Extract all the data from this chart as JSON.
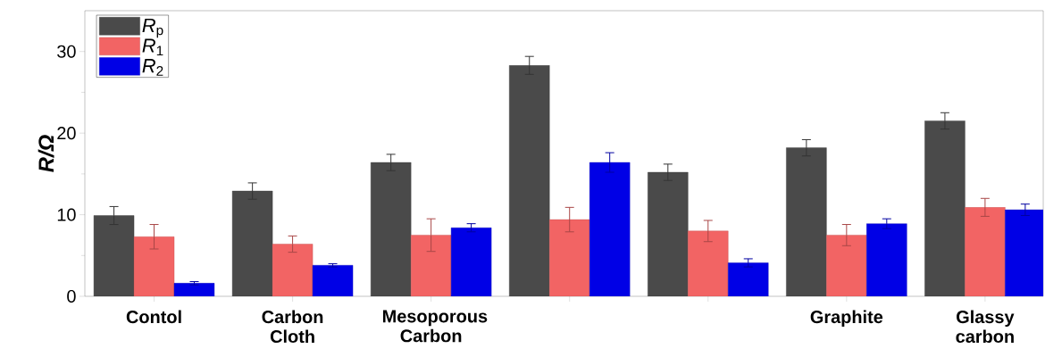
{
  "chart_data": {
    "type": "bar",
    "ylabel": "R/Ω",
    "categories": [
      "Contol",
      "Carbon Cloth",
      "Mesoporous Carbon",
      null,
      null,
      "Graphite",
      "Glassy carbon"
    ],
    "series": [
      {
        "name": "*R*$_{p}$",
        "color": "#4a4a4a",
        "values": [
          9.9,
          12.9,
          16.4,
          28.3,
          15.2,
          18.2,
          21.5
        ],
        "errors": [
          1.1,
          1.0,
          1.0,
          1.1,
          1.0,
          1.0,
          1.0
        ]
      },
      {
        "name": "*R*$_{1}$",
        "color": "#f26464",
        "values": [
          7.3,
          6.4,
          7.5,
          9.4,
          8.0,
          7.5,
          10.9
        ],
        "errors": [
          1.5,
          1.0,
          2.0,
          1.5,
          1.3,
          1.3,
          1.1
        ]
      },
      {
        "name": "*R*$_{2}$",
        "color": "#0000e6",
        "values": [
          1.6,
          3.8,
          8.4,
          16.4,
          4.1,
          8.9,
          10.6
        ],
        "errors": [
          0.2,
          0.2,
          0.5,
          1.2,
          0.5,
          0.6,
          0.7
        ]
      }
    ],
    "ylim": [
      0,
      35
    ],
    "yticks": [
      0,
      10,
      20,
      30
    ],
    "grid": false,
    "legend": "top left"
  }
}
